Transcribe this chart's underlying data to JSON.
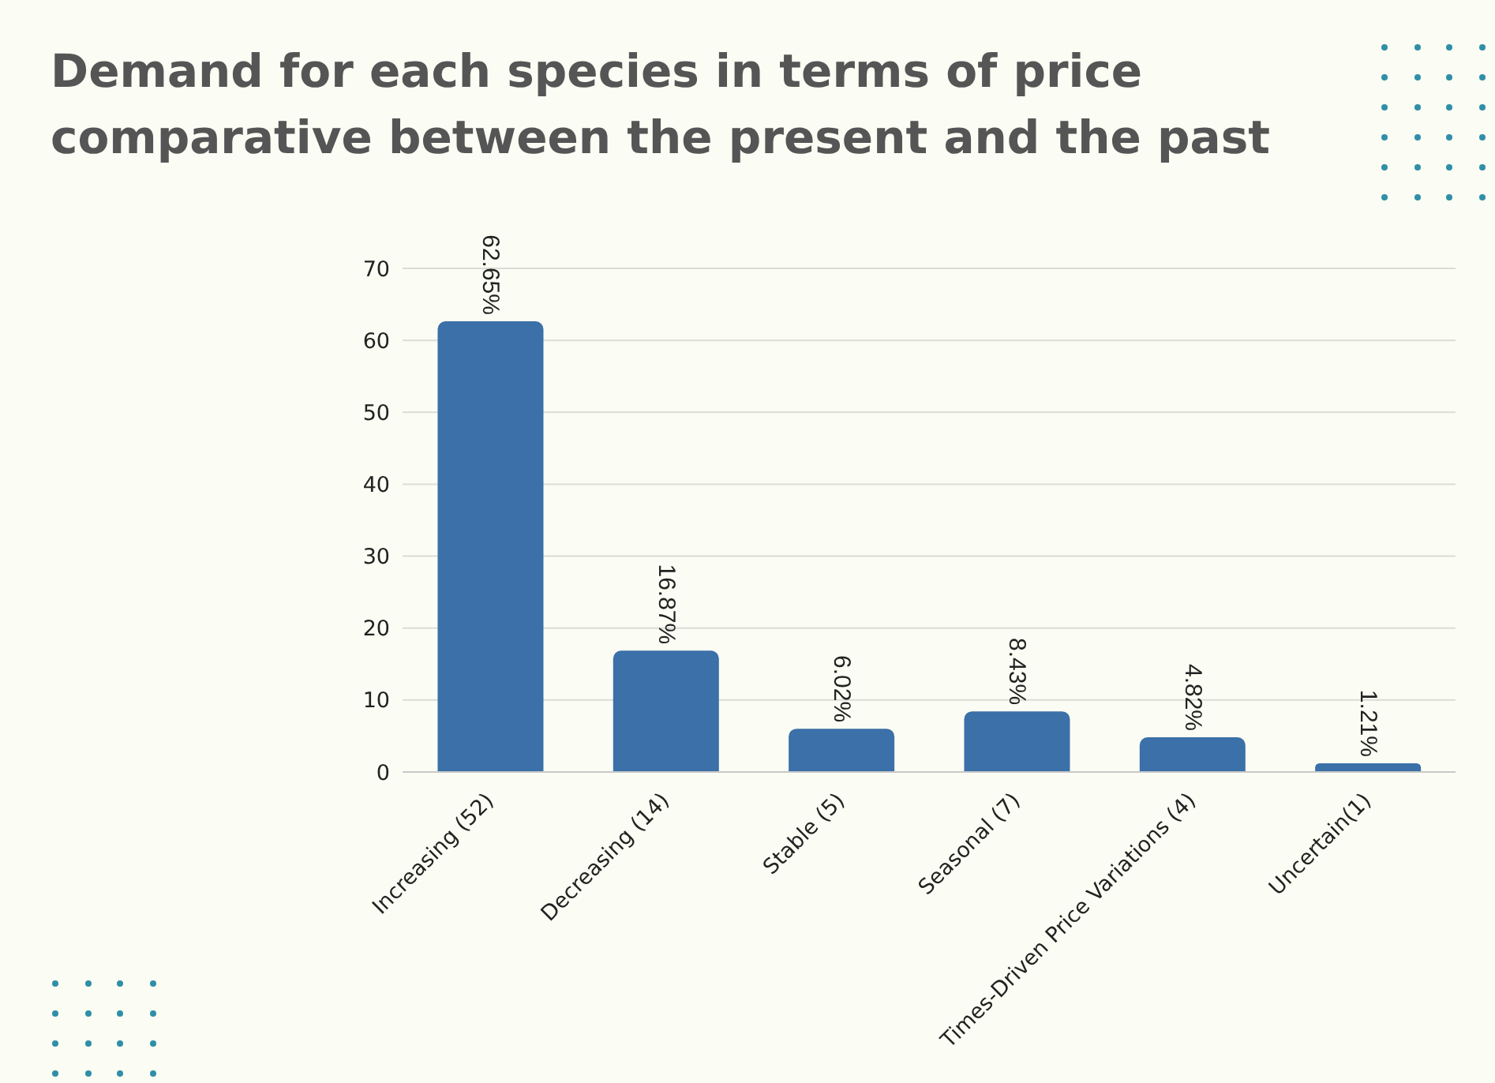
{
  "chart_data": {
    "type": "bar",
    "title": "Demand for each species in terms of price comparative between the present and the past",
    "categories": [
      "Increasing (52)",
      "Decreasing (14)",
      "Stable (5)",
      "Seasonal (7)",
      "Times-Driven Price Variations (4)",
      "Uncertain(1)"
    ],
    "values": [
      62.65,
      16.87,
      6.02,
      8.43,
      4.82,
      1.21
    ],
    "value_labels": [
      "62.65%",
      "16.87%",
      "6.02%",
      "8.43%",
      "4.82%",
      "1.21%"
    ],
    "color": "#3b70a8",
    "ylim": [
      0,
      70
    ],
    "yticks": [
      0,
      10,
      20,
      30,
      40,
      50,
      60,
      70
    ],
    "grid": "y",
    "legend": false
  }
}
